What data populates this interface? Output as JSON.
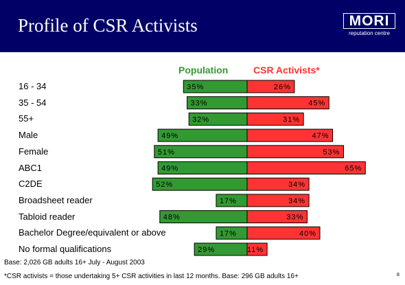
{
  "title": "Profile of CSR Activists",
  "logo": {
    "word": "MORI",
    "sub": "reputation centre"
  },
  "colors": {
    "header_bg": "#000066",
    "population": "#339933",
    "csr": "#ff3333",
    "population_text": "#339933",
    "csr_text": "#ff3333"
  },
  "chart_data": {
    "type": "bar",
    "orientation": "horizontal-diverging",
    "categories": [
      "16 - 34",
      "35 - 54",
      "55+",
      "Male",
      "Female",
      "ABC1",
      "C2DE",
      "Broadsheet reader",
      "Tabloid reader",
      "Bachelor Degree/equivalent or above",
      "No formal qualifications"
    ],
    "series": [
      {
        "name": "Population",
        "values": [
          35,
          33,
          32,
          49,
          51,
          49,
          52,
          17,
          48,
          17,
          29
        ],
        "direction": "left"
      },
      {
        "name": "CSR Activists*",
        "values": [
          26,
          45,
          31,
          47,
          53,
          65,
          34,
          34,
          33,
          40,
          11
        ],
        "direction": "right"
      }
    ],
    "value_suffix": "%",
    "legend": "top-center"
  },
  "footnotes": {
    "base": "Base: 2,026 GB adults 16+ July - August 2003",
    "csr_note": "*CSR activists = those undertaking 5+ CSR activities in last 12 months.  Base: 296 GB adults 16+"
  },
  "page_number": "8"
}
